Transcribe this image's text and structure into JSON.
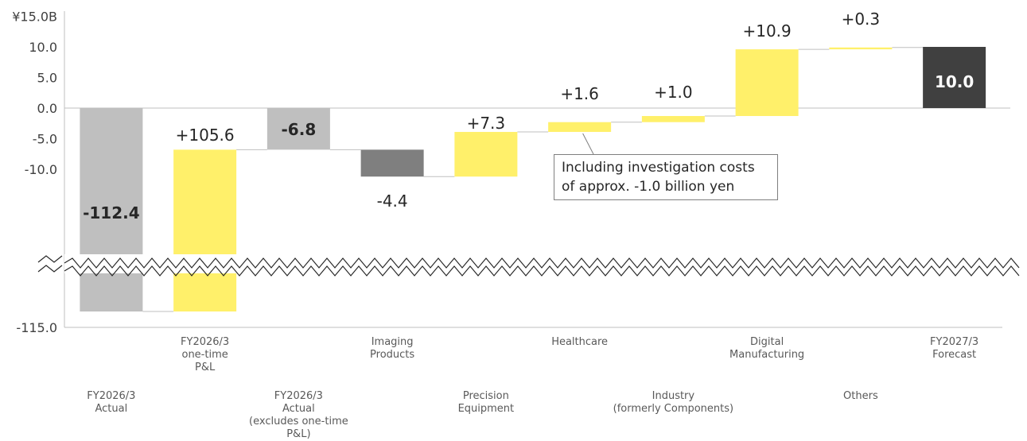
{
  "chart_data": {
    "type": "bar",
    "subtype": "waterfall",
    "y_ticks_upper": [
      "¥15.0B",
      "10.0",
      "5.0",
      "0.0",
      "-5.0",
      "-10.0"
    ],
    "y_tick_lower": "-115.0",
    "axis_break": true,
    "ylim": [
      -115.0,
      15.0
    ],
    "categories": [
      {
        "line1": "FY2026/3",
        "line2": "Actual",
        "line3": "",
        "line4": "",
        "row": "lower"
      },
      {
        "line1": "FY2026/3",
        "line2": "one-time",
        "line3": "P&L",
        "line4": "",
        "row": "upper"
      },
      {
        "line1": "FY2026/3",
        "line2": "Actual",
        "line3": "(excludes one-time",
        "line4": "P&L)",
        "row": "lower"
      },
      {
        "line1": "Imaging",
        "line2": "Products",
        "line3": "",
        "line4": "",
        "row": "upper"
      },
      {
        "line1": "Precision",
        "line2": "Equipment",
        "line3": "",
        "line4": "",
        "row": "lower"
      },
      {
        "line1": "Healthcare",
        "line2": "",
        "line3": "",
        "line4": "",
        "row": "upper"
      },
      {
        "line1": "Industry",
        "line2": "(formerly Components)",
        "line3": "",
        "line4": "",
        "row": "lower"
      },
      {
        "line1": "Digital",
        "line2": "Manufacturing",
        "line3": "",
        "line4": "",
        "row": "upper"
      },
      {
        "line1": "Others",
        "line2": "",
        "line3": "",
        "line4": "",
        "row": "lower"
      },
      {
        "line1": "FY2027/3",
        "line2": "Forecast",
        "line3": "",
        "line4": "",
        "row": "upper"
      }
    ],
    "bars": [
      {
        "kind": "total",
        "start": 0,
        "end": -112.4,
        "label": "-112.4",
        "color": "#bfbfbf"
      },
      {
        "kind": "increase",
        "start": -112.4,
        "end": -6.8,
        "label": "+105.6",
        "color": "#fff06a"
      },
      {
        "kind": "subtotal",
        "start": 0,
        "end": -6.8,
        "label": "-6.8",
        "color": "#bfbfbf"
      },
      {
        "kind": "decrease",
        "start": -6.8,
        "end": -11.2,
        "label": "-4.4",
        "color": "#7f7f7f"
      },
      {
        "kind": "increase",
        "start": -11.2,
        "end": -3.9,
        "label": "+7.3",
        "color": "#fff06a"
      },
      {
        "kind": "increase",
        "start": -3.9,
        "end": -2.3,
        "label": "+1.6",
        "color": "#fff06a"
      },
      {
        "kind": "increase",
        "start": -2.3,
        "end": -1.3,
        "label": "+1.0",
        "color": "#fff06a"
      },
      {
        "kind": "increase",
        "start": -1.3,
        "end": 9.6,
        "label": "+10.9",
        "color": "#fff06a"
      },
      {
        "kind": "increase",
        "start": 9.6,
        "end": 9.9,
        "label": "+0.3",
        "color": "#fff06a"
      },
      {
        "kind": "total",
        "start": 0,
        "end": 10.0,
        "label": "10.0",
        "color": "#404040"
      }
    ],
    "annotation": {
      "line1": "Including investigation costs",
      "line2": "of approx. -1.0 billion yen",
      "target_bar": 5
    },
    "colors": {
      "increase": "#fff06a",
      "decrease": "#7f7f7f",
      "total": "#bfbfbf",
      "forecast": "#404040"
    }
  }
}
